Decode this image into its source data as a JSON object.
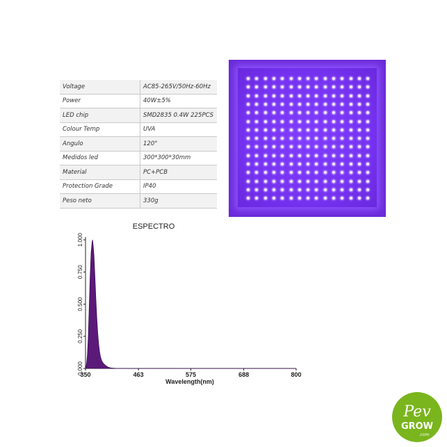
{
  "specs": [
    {
      "key": "Voltage",
      "value": "AC85-265V/50Hz-60Hz"
    },
    {
      "key": "Power",
      "value": "40W±5%"
    },
    {
      "key": "LED chip",
      "value": "SMD2835 0.4W 225PCS"
    },
    {
      "key": "Colour Temp",
      "value": "UVA"
    },
    {
      "key": "Angulo",
      "value": "120°"
    },
    {
      "key": "Medidos led",
      "value": "300*300*30mm"
    },
    {
      "key": "Material",
      "value": "PC+PCB"
    },
    {
      "key": "Protection Grade",
      "value": "IP40"
    },
    {
      "key": "Peso neto",
      "value": "330g"
    }
  ],
  "chart_data": {
    "type": "area",
    "title": "ESPECTRO",
    "xlabel": "Wavelength(nm)",
    "ylabel": "",
    "xlim": [
      350,
      800
    ],
    "ylim": [
      0,
      1
    ],
    "x_ticks": [
      "350",
      "463",
      "575",
      "688",
      "800"
    ],
    "y_ticks": [
      "0.000",
      "0.250",
      "0.500",
      "0.750",
      "1.000"
    ],
    "series": [
      {
        "x": [
          350,
          352,
          354,
          356,
          358,
          360,
          362,
          364,
          365,
          366,
          368,
          370,
          372,
          374,
          376,
          378,
          380,
          382,
          384,
          386,
          388,
          390,
          392,
          394,
          396,
          398,
          400,
          404,
          410,
          420,
          463,
          575,
          688,
          800
        ],
        "values": [
          0.0,
          0.03,
          0.1,
          0.25,
          0.48,
          0.72,
          0.9,
          0.98,
          1.0,
          0.97,
          0.88,
          0.72,
          0.55,
          0.4,
          0.28,
          0.19,
          0.13,
          0.09,
          0.065,
          0.05,
          0.04,
          0.032,
          0.026,
          0.02,
          0.015,
          0.011,
          0.008,
          0.004,
          0.002,
          0.0,
          0.0,
          0.0,
          0.0,
          0.0
        ]
      }
    ],
    "fill_color": "#5b1a7a",
    "grid": false
  },
  "logo": {
    "line1": "Pev",
    "line2": "GROW",
    "line3": ".com",
    "green": "#7ab51d"
  }
}
